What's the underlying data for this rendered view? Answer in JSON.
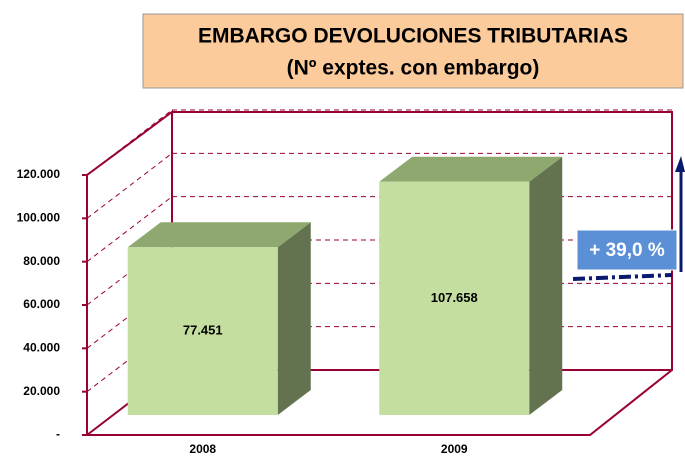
{
  "chart_data": {
    "type": "bar3d",
    "title": "EMBARGO DEVOLUCIONES TRIBUTARIAS",
    "subtitle": "(Nº exptes. con embargo)",
    "categories": [
      "2008",
      "2009"
    ],
    "values": [
      77451,
      107658
    ],
    "value_labels": [
      "77.451",
      "107.658"
    ],
    "color": "#c4dea0",
    "ylim": [
      0,
      120000
    ],
    "yticks": [
      {
        "value": 0,
        "label": "-"
      },
      {
        "value": 20000,
        "label": "20.000"
      },
      {
        "value": 40000,
        "label": "40.000"
      },
      {
        "value": 60000,
        "label": "60.000"
      },
      {
        "value": 80000,
        "label": "80.000"
      },
      {
        "value": 100000,
        "label": "100.000"
      },
      {
        "value": 120000,
        "label": "120.000"
      }
    ],
    "grid": true,
    "annotation": "+ 39,0 %"
  }
}
